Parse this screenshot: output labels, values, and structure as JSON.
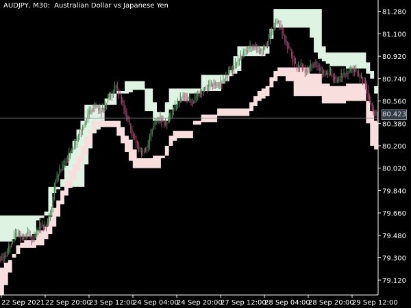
{
  "symbol_label": "AUDJPY, M30:  Australian Dollar vs Japanese Yen",
  "current_price_label": "80.423",
  "colors": {
    "background": "#000000",
    "axis": "#ffffff",
    "text": "#ffffff",
    "upper_band_fill": "#dff3e2",
    "lower_band_fill": "#f8dedd",
    "bull_candle": "#4f8f5a",
    "bear_candle": "#b0497a",
    "price_line": "#8b8b8b"
  },
  "chart_data": {
    "type": "candlestick-with-bands",
    "title": "AUDJPY, M30:  Australian Dollar vs Japanese Yen",
    "ylim": [
      79.0,
      81.35
    ],
    "y_ticks": [
      "81.280",
      "81.100",
      "80.920",
      "80.740",
      "80.560",
      "80.380",
      "80.200",
      "80.020",
      "79.840",
      "79.660",
      "79.480",
      "79.300",
      "79.120"
    ],
    "x_ticks": [
      "22 Sep 2021",
      "22 Sep 20:00",
      "23 Sep 12:00",
      "24 Sep 04:00",
      "24 Sep 20:00",
      "27 Sep 12:00",
      "28 Sep 04:00",
      "28 Sep 20:00",
      "29 Sep 12:00"
    ],
    "current_price": 80.423,
    "upper_band": {
      "top": [
        79.64,
        79.64,
        79.64,
        79.64,
        79.64,
        79.64,
        79.64,
        79.64,
        79.64,
        79.64,
        79.64,
        79.64,
        79.64,
        79.82,
        79.85,
        79.93,
        80.04,
        80.14,
        80.24,
        80.33,
        80.4,
        80.53,
        80.53,
        80.53,
        80.53,
        80.53,
        80.53,
        80.53,
        80.53,
        80.64,
        80.64,
        80.72,
        80.72,
        80.72,
        80.72,
        80.72,
        80.66,
        80.66,
        80.55,
        80.47,
        80.47,
        80.55,
        80.66,
        80.66,
        80.66,
        80.66,
        80.66,
        80.66,
        80.66,
        80.66,
        80.77,
        80.77,
        80.77,
        80.77,
        80.77,
        80.77,
        80.77,
        80.81,
        80.92,
        81.0,
        81.0,
        81.0,
        81.0,
        81.0,
        81.0,
        81.0,
        81.0,
        81.14,
        81.3,
        81.3,
        81.3,
        81.3,
        81.3,
        81.3,
        81.3,
        81.3,
        81.3,
        81.3,
        81.3,
        81.3,
        81.0,
        80.95,
        80.95,
        80.95,
        80.95,
        80.95,
        80.95,
        80.95,
        80.95,
        80.95,
        80.95,
        80.87,
        80.8,
        80.68
      ],
      "bottom": [
        79.43,
        79.43,
        79.43,
        79.45,
        79.47,
        79.47,
        79.47,
        79.47,
        79.49,
        79.6,
        79.62,
        79.67,
        79.87,
        79.87,
        79.87,
        79.87,
        79.87,
        79.87,
        79.87,
        79.87,
        79.87,
        80.05,
        80.18,
        80.3,
        80.33,
        80.4,
        80.58,
        80.62,
        80.62,
        80.62,
        80.62,
        80.62,
        80.63,
        80.65,
        80.65,
        80.65,
        80.48,
        80.48,
        80.4,
        80.4,
        80.4,
        80.4,
        80.49,
        80.53,
        80.56,
        80.56,
        80.56,
        80.62,
        80.62,
        80.62,
        80.64,
        80.64,
        80.64,
        80.64,
        80.64,
        80.7,
        80.72,
        80.76,
        80.78,
        80.8,
        80.92,
        80.92,
        80.92,
        80.92,
        80.92,
        80.92,
        80.94,
        81.06,
        81.15,
        81.15,
        81.15,
        81.15,
        81.15,
        81.15,
        81.15,
        81.15,
        81.15,
        81.07,
        80.95,
        80.9,
        80.88,
        80.86,
        80.84,
        80.84,
        80.84,
        80.84,
        80.82,
        80.82,
        80.82,
        80.82,
        80.82,
        80.78,
        80.74,
        80.62
      ]
    },
    "lower_band": {
      "top": [
        79.22,
        79.26,
        79.28,
        79.33,
        79.4,
        79.42,
        79.44,
        79.44,
        79.44,
        79.52,
        79.52,
        79.55,
        79.63,
        79.7,
        79.76,
        79.84,
        79.92,
        80.0,
        80.05,
        80.12,
        80.2,
        80.27,
        80.33,
        80.4,
        80.4,
        80.4,
        80.4,
        80.4,
        80.4,
        80.4,
        80.35,
        80.28,
        80.25,
        80.17,
        80.1,
        80.1,
        80.1,
        80.1,
        80.12,
        80.12,
        80.12,
        80.12,
        80.28,
        80.32,
        80.32,
        80.32,
        80.32,
        80.32,
        80.4,
        80.4,
        80.45,
        80.45,
        80.45,
        80.45,
        80.5,
        80.5,
        80.5,
        80.5,
        80.5,
        80.5,
        80.5,
        80.5,
        80.55,
        80.6,
        80.64,
        80.66,
        80.68,
        80.75,
        80.8,
        80.83,
        80.83,
        80.83,
        80.83,
        80.83,
        80.83,
        80.83,
        80.83,
        80.78,
        80.78,
        80.78,
        80.7,
        80.7,
        80.68,
        80.68,
        80.68,
        80.68,
        80.7,
        80.7,
        80.7,
        80.7,
        80.7,
        80.56,
        80.48,
        80.4
      ],
      "bottom": [
        79.0,
        79.08,
        79.18,
        79.3,
        79.33,
        79.38,
        79.38,
        79.38,
        79.38,
        79.4,
        79.4,
        79.45,
        79.49,
        79.55,
        79.63,
        79.73,
        79.8,
        79.86,
        79.93,
        80.0,
        80.07,
        80.13,
        80.2,
        80.32,
        80.35,
        80.35,
        80.35,
        80.35,
        80.35,
        80.28,
        80.22,
        80.15,
        80.08,
        80.02,
        80.02,
        80.02,
        80.02,
        80.02,
        80.02,
        80.02,
        80.1,
        80.2,
        80.2,
        80.24,
        80.26,
        80.26,
        80.26,
        80.26,
        80.37,
        80.37,
        80.39,
        80.39,
        80.39,
        80.39,
        80.44,
        80.44,
        80.44,
        80.44,
        80.44,
        80.44,
        80.44,
        80.44,
        80.48,
        80.52,
        80.56,
        80.58,
        80.6,
        80.67,
        80.72,
        80.76,
        80.76,
        80.72,
        80.72,
        80.6,
        80.6,
        80.6,
        80.6,
        80.6,
        80.6,
        80.6,
        80.54,
        80.54,
        80.54,
        80.54,
        80.54,
        80.54,
        80.56,
        80.56,
        80.56,
        80.56,
        80.56,
        80.38,
        80.2,
        80.17
      ]
    },
    "close": [
      79.3,
      79.35,
      79.42,
      79.5,
      79.48,
      79.46,
      79.5,
      79.45,
      79.48,
      79.56,
      79.55,
      79.58,
      79.7,
      79.92,
      80.0,
      80.06,
      80.1,
      80.18,
      80.22,
      80.3,
      80.36,
      80.45,
      80.5,
      80.52,
      80.48,
      80.5,
      80.58,
      80.62,
      80.68,
      80.6,
      80.5,
      80.4,
      80.3,
      80.22,
      80.15,
      80.16,
      80.2,
      80.35,
      80.4,
      80.42,
      80.38,
      80.4,
      80.48,
      80.52,
      80.58,
      80.6,
      80.57,
      80.55,
      80.6,
      80.62,
      80.66,
      80.68,
      80.7,
      80.68,
      80.7,
      80.74,
      80.8,
      80.82,
      80.86,
      80.92,
      80.96,
      80.98,
      81.0,
      80.98,
      80.95,
      81.0,
      81.05,
      81.15,
      81.2,
      81.15,
      81.05,
      80.98,
      80.9,
      80.82,
      80.85,
      80.8,
      80.82,
      80.86,
      80.84,
      80.8,
      80.78,
      80.8,
      80.75,
      80.72,
      80.76,
      80.78,
      80.8,
      80.82,
      80.78,
      80.74,
      80.7,
      80.56,
      80.48,
      80.42
    ]
  }
}
